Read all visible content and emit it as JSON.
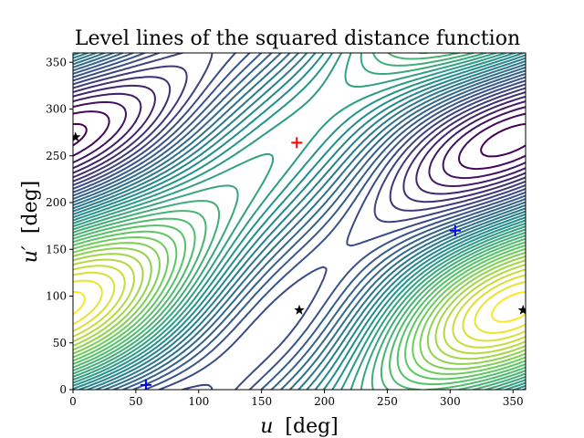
{
  "chart_data": {
    "type": "contour",
    "title": "Level lines of the squared distance function",
    "xlabel_var": "u",
    "xlabel_unit": "[deg]",
    "ylabel_var": "u′",
    "ylabel_unit": "[deg]",
    "xlim": [
      0,
      360
    ],
    "ylim": [
      0,
      360
    ],
    "xticks": [
      0,
      50,
      100,
      150,
      200,
      250,
      300,
      350
    ],
    "yticks": [
      0,
      50,
      100,
      150,
      200,
      250,
      300,
      350
    ],
    "grid": false,
    "colormap": [
      "#440154",
      "#3b528b",
      "#21918c",
      "#5ec962",
      "#fde725"
    ],
    "markers": [
      {
        "kind": "plus",
        "color": "#ff0000",
        "x": 178,
        "y": 264
      },
      {
        "kind": "plus",
        "color": "#0000ff",
        "x": 58,
        "y": 5
      },
      {
        "kind": "plus",
        "color": "#0000ff",
        "x": 304,
        "y": 170
      },
      {
        "kind": "star",
        "color": "#000000",
        "x": 2,
        "y": 270
      },
      {
        "kind": "star",
        "color": "#000000",
        "x": 180,
        "y": 85
      },
      {
        "kind": "star",
        "color": "#000000",
        "x": 358,
        "y": 85
      }
    ]
  }
}
